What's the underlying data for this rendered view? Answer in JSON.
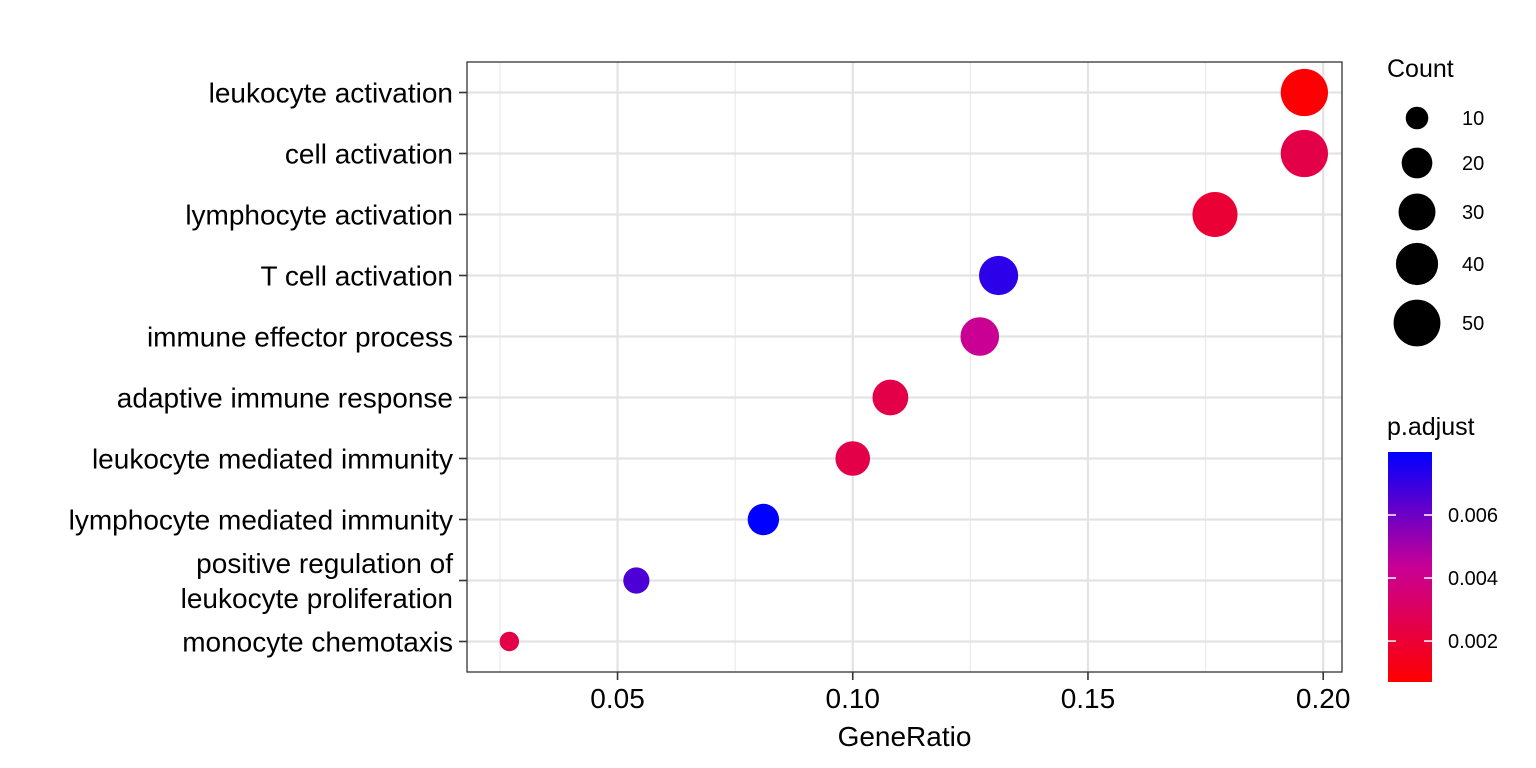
{
  "chart_data": {
    "type": "scatter",
    "xlabel": "GeneRatio",
    "ylabel": "",
    "xlim": [
      0.018,
      0.204
    ],
    "xticks": [
      0.05,
      0.1,
      0.15,
      0.2
    ],
    "xtick_labels": [
      "0.05",
      "0.10",
      "0.15",
      "0.20"
    ],
    "grid": true,
    "categories": [
      "leukocyte activation",
      "cell activation",
      "lymphocyte activation",
      "T cell activation",
      "immune effector process",
      "adaptive immune response",
      "leukocyte mediated immunity",
      "lymphocyte mediated immunity",
      "positive regulation of leukocyte proliferation",
      "monocyte chemotaxis"
    ],
    "category_lines": [
      [
        "leukocyte activation"
      ],
      [
        "cell activation"
      ],
      [
        "lymphocyte activation"
      ],
      [
        "T cell activation"
      ],
      [
        "immune effector process"
      ],
      [
        "adaptive immune response"
      ],
      [
        "leukocyte mediated immunity"
      ],
      [
        "lymphocyte mediated immunity"
      ],
      [
        "positive regulation of",
        "leukocyte proliferation"
      ],
      [
        "monocyte chemotaxis"
      ]
    ],
    "points": [
      {
        "term": "leukocyte activation",
        "gene_ratio": 0.196,
        "count": 51,
        "p_adjust": 0.0008
      },
      {
        "term": "cell activation",
        "gene_ratio": 0.196,
        "count": 51,
        "p_adjust": 0.0025
      },
      {
        "term": "lymphocyte activation",
        "gene_ratio": 0.177,
        "count": 46,
        "p_adjust": 0.002
      },
      {
        "term": "T cell activation",
        "gene_ratio": 0.131,
        "count": 34,
        "p_adjust": 0.0072
      },
      {
        "term": "immune effector process",
        "gene_ratio": 0.127,
        "count": 33,
        "p_adjust": 0.0043
      },
      {
        "term": "adaptive immune response",
        "gene_ratio": 0.108,
        "count": 28,
        "p_adjust": 0.0025
      },
      {
        "term": "leukocyte mediated immunity",
        "gene_ratio": 0.1,
        "count": 26,
        "p_adjust": 0.0025
      },
      {
        "term": "lymphocyte mediated immunity",
        "gene_ratio": 0.081,
        "count": 21,
        "p_adjust": 0.008
      },
      {
        "term": "positive regulation of leukocyte proliferation",
        "gene_ratio": 0.054,
        "count": 14,
        "p_adjust": 0.0066
      },
      {
        "term": "monocyte chemotaxis",
        "gene_ratio": 0.027,
        "count": 7,
        "p_adjust": 0.0025
      }
    ],
    "size_legend": {
      "title": "Count",
      "values": [
        10,
        20,
        30,
        40,
        50
      ],
      "labels": [
        "10",
        "20",
        "30",
        "40",
        "50"
      ]
    },
    "color_legend": {
      "title": "p.adjust",
      "range": [
        0.0007,
        0.008
      ],
      "ticks": [
        0.002,
        0.004,
        0.006
      ],
      "tick_labels": [
        "0.002",
        "0.004",
        "0.006"
      ],
      "low_color": "#ff0000",
      "high_color": "#0000ff"
    }
  }
}
